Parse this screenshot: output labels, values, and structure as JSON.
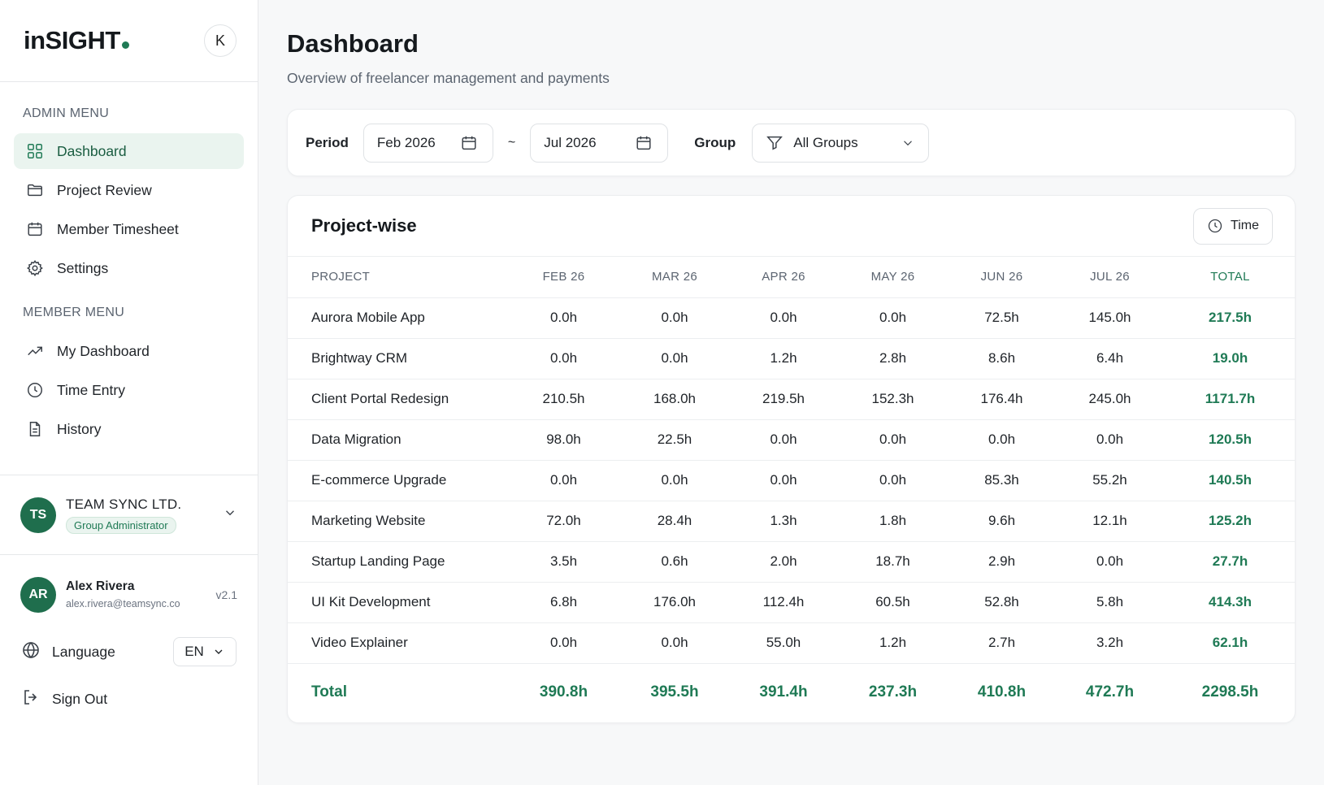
{
  "brand": {
    "name": "inSIGHT",
    "avatar_letter": "K"
  },
  "admin_menu": {
    "title": "ADMIN MENU",
    "items": [
      {
        "label": "Dashboard",
        "icon": "grid-icon",
        "active": true
      },
      {
        "label": "Project Review",
        "icon": "folder-icon"
      },
      {
        "label": "Member Timesheet",
        "icon": "calendar-icon"
      },
      {
        "label": "Settings",
        "icon": "gear-icon"
      }
    ]
  },
  "member_menu": {
    "title": "MEMBER MENU",
    "items": [
      {
        "label": "My Dashboard",
        "icon": "trend-icon"
      },
      {
        "label": "Time Entry",
        "icon": "clock-icon"
      },
      {
        "label": "History",
        "icon": "document-icon"
      }
    ]
  },
  "org": {
    "initials": "TS",
    "name": "TEAM SYNC LTD.",
    "role": "Group Administrator"
  },
  "user": {
    "initials": "AR",
    "name": "Alex Rivera",
    "email": "alex.rivera@teamsync.co",
    "version": "v2.1"
  },
  "language": {
    "label": "Language",
    "value": "EN"
  },
  "signout": {
    "label": "Sign Out"
  },
  "header": {
    "title": "Dashboard",
    "subtitle": "Overview of freelancer management and payments"
  },
  "filters": {
    "period_label": "Period",
    "start": "Feb 2026",
    "separator": "~",
    "end": "Jul 2026",
    "group_label": "Group",
    "group_value": "All Groups"
  },
  "table": {
    "title": "Project-wise",
    "toggle_label": "Time",
    "columns": [
      "PROJECT",
      "FEB 26",
      "MAR 26",
      "APR 26",
      "MAY 26",
      "JUN 26",
      "JUL 26",
      "TOTAL"
    ],
    "rows": [
      [
        "Aurora Mobile App",
        "0.0h",
        "0.0h",
        "0.0h",
        "0.0h",
        "72.5h",
        "145.0h",
        "217.5h"
      ],
      [
        "Brightway CRM",
        "0.0h",
        "0.0h",
        "1.2h",
        "2.8h",
        "8.6h",
        "6.4h",
        "19.0h"
      ],
      [
        "Client Portal Redesign",
        "210.5h",
        "168.0h",
        "219.5h",
        "152.3h",
        "176.4h",
        "245.0h",
        "1171.7h"
      ],
      [
        "Data Migration",
        "98.0h",
        "22.5h",
        "0.0h",
        "0.0h",
        "0.0h",
        "0.0h",
        "120.5h"
      ],
      [
        "E-commerce Upgrade",
        "0.0h",
        "0.0h",
        "0.0h",
        "0.0h",
        "85.3h",
        "55.2h",
        "140.5h"
      ],
      [
        "Marketing Website",
        "72.0h",
        "28.4h",
        "1.3h",
        "1.8h",
        "9.6h",
        "12.1h",
        "125.2h"
      ],
      [
        "Startup Landing Page",
        "3.5h",
        "0.6h",
        "2.0h",
        "18.7h",
        "2.9h",
        "0.0h",
        "27.7h"
      ],
      [
        "UI Kit Development",
        "6.8h",
        "176.0h",
        "112.4h",
        "60.5h",
        "52.8h",
        "5.8h",
        "414.3h"
      ],
      [
        "Video Explainer",
        "0.0h",
        "0.0h",
        "55.0h",
        "1.2h",
        "2.7h",
        "3.2h",
        "62.1h"
      ]
    ],
    "total_row": [
      "Total",
      "390.8h",
      "395.5h",
      "391.4h",
      "237.3h",
      "410.8h",
      "472.7h",
      "2298.5h"
    ]
  }
}
